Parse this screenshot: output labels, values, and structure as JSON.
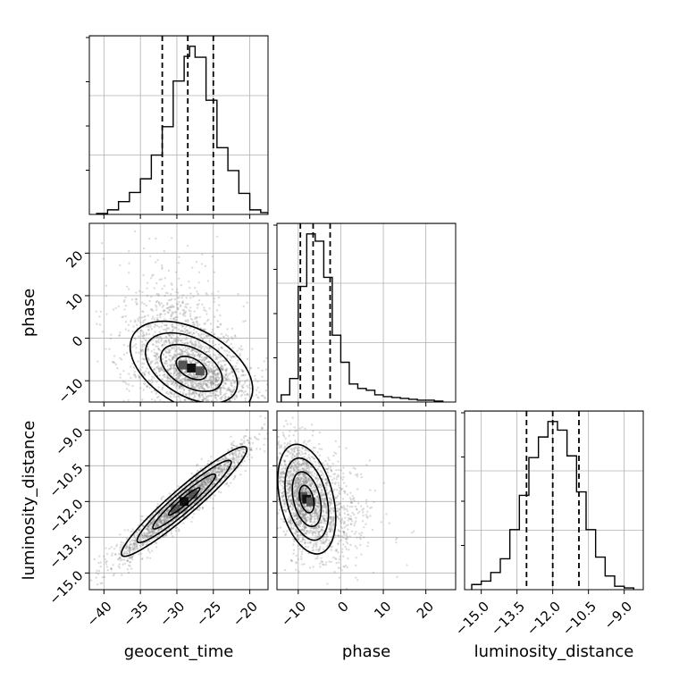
{
  "chart_data": {
    "type": "corner",
    "colors": {
      "ink": "#000000",
      "grid": "#b0b0b0",
      "scatter": "#808080",
      "background": "#ffffff"
    },
    "grid": true,
    "parameters": [
      {
        "name": "geocent_time",
        "label": "geocent_time",
        "range": [
          -42,
          -17.5
        ],
        "ticks": [
          -40,
          -35,
          -30,
          -25,
          -20
        ],
        "tick_labels": [
          "−40",
          "−35",
          "−30",
          "−25",
          "−20"
        ]
      },
      {
        "name": "phase",
        "label": "phase",
        "range": [
          -15,
          27
        ],
        "ticks": [
          -10,
          0,
          10,
          20
        ],
        "tick_labels": [
          "−10",
          "0",
          "10",
          "20"
        ]
      },
      {
        "name": "luminosity_distance",
        "label": "luminosity_distance",
        "range": [
          -15.7,
          -8.2
        ],
        "ticks": [
          -15.0,
          -13.5,
          -12.0,
          -10.5,
          -9.0
        ],
        "tick_labels": [
          "−15.0",
          "−13.5",
          "−12.0",
          "−10.5",
          "−9.0"
        ]
      }
    ],
    "histograms": [
      {
        "parameter": "geocent_time",
        "bin_edges": [
          -41,
          -39.5,
          -38,
          -36.5,
          -35,
          -33.5,
          -32,
          -30.5,
          -29,
          -28.25,
          -27.5,
          -26,
          -24.5,
          -23,
          -21.5,
          -20,
          -18.5,
          -17.5
        ],
        "counts": [
          0.005,
          0.025,
          0.07,
          0.12,
          0.195,
          0.325,
          0.48,
          0.73,
          0.865,
          0.92,
          0.86,
          0.625,
          0.365,
          0.24,
          0.115,
          0.025,
          0.01
        ],
        "quantiles": [
          -32,
          -28.5,
          -25
        ]
      },
      {
        "parameter": "phase",
        "bin_edges": [
          -14,
          -12,
          -10,
          -8,
          -6,
          -4,
          -2,
          0,
          2,
          4,
          6,
          8,
          10,
          12,
          14,
          16,
          18,
          20,
          22,
          24
        ],
        "counts": [
          0.04,
          0.13,
          0.64,
          0.93,
          0.89,
          0.69,
          0.37,
          0.22,
          0.1,
          0.075,
          0.065,
          0.04,
          0.03,
          0.025,
          0.02,
          0.015,
          0.01,
          0.01,
          0.005
        ],
        "quantiles": [
          -9.5,
          -6.5,
          -2.5
        ]
      },
      {
        "parameter": "luminosity_distance",
        "bin_edges": [
          -15.4,
          -15.0,
          -14.6,
          -14.2,
          -13.8,
          -13.4,
          -13.0,
          -12.6,
          -12.2,
          -11.8,
          -11.4,
          -11.0,
          -10.6,
          -10.2,
          -9.8,
          -9.4,
          -9.0,
          -8.6
        ],
        "counts": [
          0.03,
          0.05,
          0.1,
          0.18,
          0.35,
          0.55,
          0.77,
          0.89,
          0.98,
          0.93,
          0.78,
          0.57,
          0.35,
          0.19,
          0.08,
          0.02,
          0.01
        ],
        "quantiles": [
          -13.1,
          -12.0,
          -10.9
        ]
      }
    ],
    "joint": [
      {
        "x": "geocent_time",
        "y": "phase",
        "mean": [
          -28.0,
          -7.0
        ],
        "std": [
          4.2,
          5.5
        ],
        "correlation": -0.45,
        "tail": 0.35,
        "contour_levels_sigma": [
          0.5,
          1.0,
          1.5,
          2.0
        ]
      },
      {
        "x": "geocent_time",
        "y": "luminosity_distance",
        "mean": [
          -29.0,
          -12.0
        ],
        "std": [
          4.3,
          1.15
        ],
        "correlation": 0.95,
        "tail": 0.0,
        "contour_levels_sigma": [
          0.5,
          1.0,
          1.5,
          2.0
        ]
      },
      {
        "x": "phase",
        "y": "luminosity_distance",
        "mean": [
          -8.0,
          -11.9
        ],
        "std": [
          3.4,
          1.15
        ],
        "correlation": -0.35,
        "tail": 0.35,
        "contour_levels_sigma": [
          0.5,
          1.0,
          1.5,
          2.0
        ]
      }
    ]
  }
}
